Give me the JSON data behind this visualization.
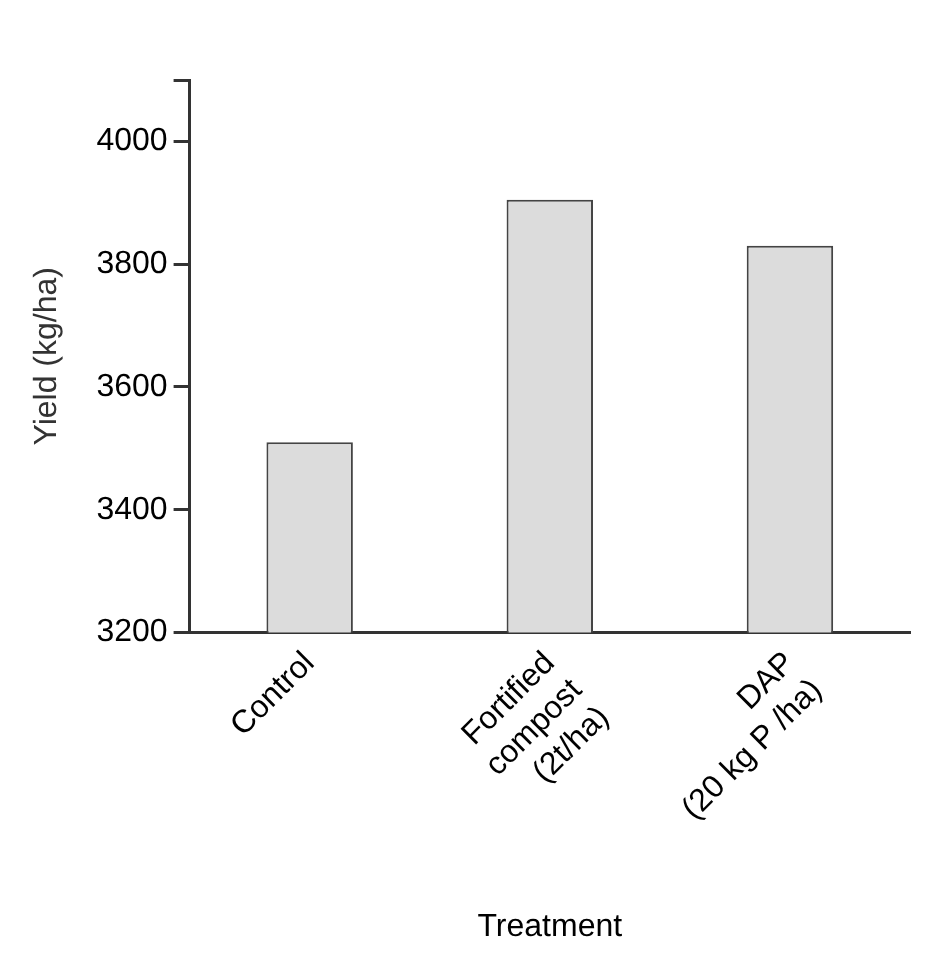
{
  "chart_data": {
    "type": "bar",
    "xlabel": "Treatment",
    "ylabel": "Yield (kg/ha)",
    "categories": [
      "Control",
      "Fortified\ncompost\n(2t/ha)",
      "DAP\n(20 kg P /ha)"
    ],
    "values": [
      3510,
      3905,
      3830
    ],
    "color": "#dcdcdc",
    "ylim": [
      3200,
      4100
    ],
    "yticks": [
      3200,
      3400,
      3600,
      3800,
      4000,
      {
        "value": 4100,
        "label": null
      }
    ],
    "grid": false,
    "legend": false
  }
}
